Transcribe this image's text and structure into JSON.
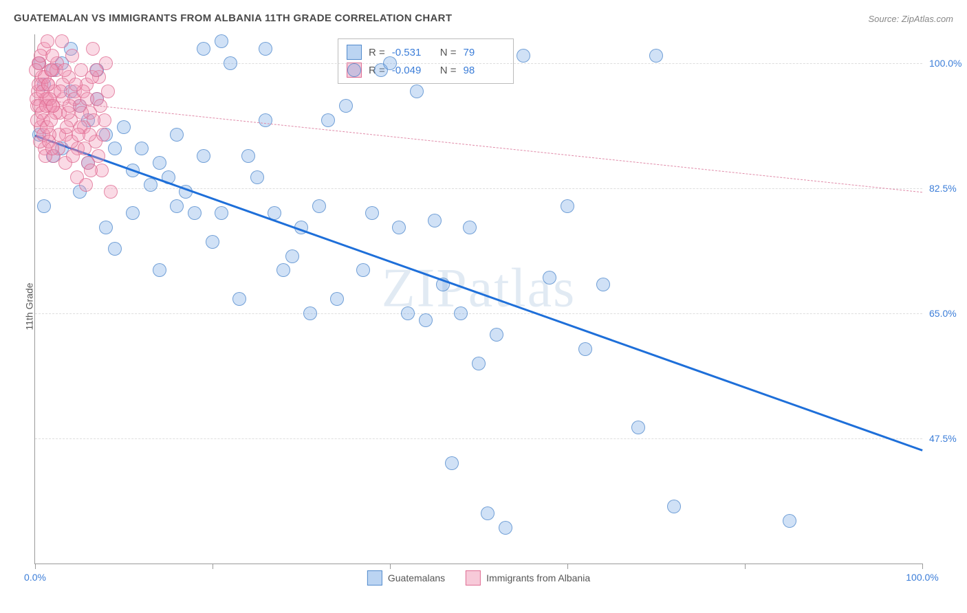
{
  "title": "GUATEMALAN VS IMMIGRANTS FROM ALBANIA 11TH GRADE CORRELATION CHART",
  "source": "Source: ZipAtlas.com",
  "watermark": "ZIPatlas",
  "ylabel": "11th Grade",
  "chart": {
    "type": "scatter",
    "xlim": [
      0,
      100
    ],
    "ylim": [
      30,
      104
    ],
    "x_ticks": [
      0,
      20,
      40,
      60,
      80,
      100
    ],
    "x_tick_labels": {
      "0": "0.0%",
      "100": "100.0%"
    },
    "y_gridlines": [
      47.5,
      65.0,
      82.5,
      100.0
    ],
    "y_tick_labels": [
      "47.5%",
      "65.0%",
      "82.5%",
      "100.0%"
    ],
    "grid_color": "#dddddd",
    "axis_color": "#999999",
    "label_color": "#3b7dd8",
    "background_color": "#ffffff",
    "series": [
      {
        "name": "Guatemalans",
        "color_fill": "rgba(120,170,230,0.35)",
        "color_stroke": "rgba(70,130,200,0.7)",
        "R": "-0.531",
        "N": "79",
        "trend": {
          "x1": 0,
          "y1": 90,
          "x2": 100,
          "y2": 46,
          "stroke": "#1e6fd9",
          "width": 3,
          "dash": "none"
        },
        "points": [
          [
            2,
            99
          ],
          [
            3,
            100
          ],
          [
            4,
            96
          ],
          [
            5,
            94
          ],
          [
            6,
            92
          ],
          [
            7,
            99
          ],
          [
            8,
            90
          ],
          [
            9,
            88
          ],
          [
            10,
            91
          ],
          [
            11,
            85
          ],
          [
            12,
            88
          ],
          [
            13,
            83
          ],
          [
            14,
            86
          ],
          [
            15,
            84
          ],
          [
            16,
            80
          ],
          [
            17,
            82
          ],
          [
            18,
            79
          ],
          [
            19,
            102
          ],
          [
            20,
            75
          ],
          [
            21,
            103
          ],
          [
            22,
            100
          ],
          [
            23,
            67
          ],
          [
            24,
            87
          ],
          [
            25,
            84
          ],
          [
            26,
            102
          ],
          [
            27,
            79
          ],
          [
            28,
            71
          ],
          [
            29,
            73
          ],
          [
            30,
            77
          ],
          [
            31,
            65
          ],
          [
            32,
            80
          ],
          [
            33,
            92
          ],
          [
            34,
            67
          ],
          [
            35,
            94
          ],
          [
            36,
            99
          ],
          [
            37,
            71
          ],
          [
            38,
            79
          ],
          [
            39,
            99
          ],
          [
            40,
            100
          ],
          [
            41,
            77
          ],
          [
            42,
            65
          ],
          [
            43,
            96
          ],
          [
            44,
            64
          ],
          [
            45,
            78
          ],
          [
            46,
            69
          ],
          [
            47,
            44
          ],
          [
            48,
            65
          ],
          [
            49,
            77
          ],
          [
            50,
            58
          ],
          [
            51,
            37
          ],
          [
            52,
            62
          ],
          [
            53,
            35
          ],
          [
            55,
            101
          ],
          [
            58,
            70
          ],
          [
            60,
            80
          ],
          [
            62,
            60
          ],
          [
            64,
            69
          ],
          [
            68,
            49
          ],
          [
            70,
            101
          ],
          [
            72,
            38
          ],
          [
            85,
            36
          ],
          [
            9,
            74
          ],
          [
            14,
            71
          ],
          [
            19,
            87
          ],
          [
            6,
            86
          ],
          [
            11,
            79
          ],
          [
            3,
            88
          ],
          [
            16,
            90
          ],
          [
            7,
            95
          ],
          [
            21,
            79
          ],
          [
            26,
            92
          ],
          [
            2,
            87
          ],
          [
            5,
            82
          ],
          [
            8,
            77
          ],
          [
            4,
            102
          ],
          [
            1,
            80
          ],
          [
            1,
            97
          ],
          [
            0.5,
            90
          ],
          [
            0.5,
            100
          ]
        ]
      },
      {
        "name": "Immigrants from Albania",
        "color_fill": "rgba(240,150,180,0.35)",
        "color_stroke": "rgba(220,100,140,0.7)",
        "R": "-0.049",
        "N": "98",
        "trend": {
          "x1": 0,
          "y1": 95,
          "x2": 100,
          "y2": 82,
          "stroke": "#e08aa8",
          "width": 1.2,
          "dash": "6,6"
        },
        "points": [
          [
            0.5,
            100
          ],
          [
            0.8,
            98
          ],
          [
            1,
            102
          ],
          [
            1.2,
            95
          ],
          [
            1.5,
            97
          ],
          [
            1.8,
            99
          ],
          [
            2,
            94
          ],
          [
            2.2,
            96
          ],
          [
            2.5,
            100
          ],
          [
            2.8,
            93
          ],
          [
            3,
            103
          ],
          [
            3.2,
            95
          ],
          [
            3.5,
            90
          ],
          [
            3.8,
            98
          ],
          [
            4,
            92
          ],
          [
            4.2,
            101
          ],
          [
            4.5,
            96
          ],
          [
            4.8,
            88
          ],
          [
            5,
            94
          ],
          [
            5.2,
            99
          ],
          [
            5.5,
            91
          ],
          [
            5.8,
            97
          ],
          [
            6,
            86
          ],
          [
            6.2,
            93
          ],
          [
            6.5,
            102
          ],
          [
            6.8,
            89
          ],
          [
            7,
            95
          ],
          [
            7.2,
            98
          ],
          [
            7.5,
            85
          ],
          [
            7.8,
            92
          ],
          [
            8,
            100
          ],
          [
            0.3,
            96
          ],
          [
            0.6,
            91
          ],
          [
            1.1,
            88
          ],
          [
            1.4,
            103
          ],
          [
            1.7,
            94
          ],
          [
            2.1,
            87
          ],
          [
            2.4,
            99
          ],
          [
            2.7,
            90
          ],
          [
            3.1,
            97
          ],
          [
            3.4,
            86
          ],
          [
            3.7,
            93
          ],
          [
            4.1,
            89
          ],
          [
            4.4,
            95
          ],
          [
            4.7,
            84
          ],
          [
            5.1,
            91
          ],
          [
            5.4,
            96
          ],
          [
            5.7,
            83
          ],
          [
            6.1,
            90
          ],
          [
            6.4,
            98
          ],
          [
            0.2,
            94
          ],
          [
            0.4,
            100
          ],
          [
            0.7,
            97
          ],
          [
            0.9,
            92
          ],
          [
            1.3,
            95
          ],
          [
            1.6,
            90
          ],
          [
            1.9,
            101
          ],
          [
            2.3,
            93
          ],
          [
            2.6,
            88
          ],
          [
            2.9,
            96
          ],
          [
            3.3,
            99
          ],
          [
            3.6,
            91
          ],
          [
            3.9,
            94
          ],
          [
            4.3,
            87
          ],
          [
            4.6,
            97
          ],
          [
            4.9,
            90
          ],
          [
            5.3,
            93
          ],
          [
            5.6,
            88
          ],
          [
            5.9,
            95
          ],
          [
            6.3,
            85
          ],
          [
            6.6,
            92
          ],
          [
            6.9,
            99
          ],
          [
            7.1,
            87
          ],
          [
            7.4,
            94
          ],
          [
            7.7,
            90
          ],
          [
            8.2,
            96
          ],
          [
            8.5,
            82
          ],
          [
            0.1,
            99
          ],
          [
            0.15,
            95
          ],
          [
            0.25,
            92
          ],
          [
            0.35,
            97
          ],
          [
            0.45,
            94
          ],
          [
            0.55,
            89
          ],
          [
            0.65,
            101
          ],
          [
            0.75,
            93
          ],
          [
            0.85,
            96
          ],
          [
            0.95,
            90
          ],
          [
            1.05,
            98
          ],
          [
            1.15,
            87
          ],
          [
            1.25,
            94
          ],
          [
            1.35,
            91
          ],
          [
            1.45,
            97
          ],
          [
            1.55,
            89
          ],
          [
            1.65,
            95
          ],
          [
            1.75,
            92
          ],
          [
            1.85,
            99
          ],
          [
            1.95,
            88
          ],
          [
            2.05,
            94
          ]
        ]
      }
    ]
  },
  "legend": {
    "series1_label": "Guatemalans",
    "series2_label": "Immigrants from Albania"
  },
  "stats_box": {
    "r_label": "R =",
    "n_label": "N ="
  }
}
